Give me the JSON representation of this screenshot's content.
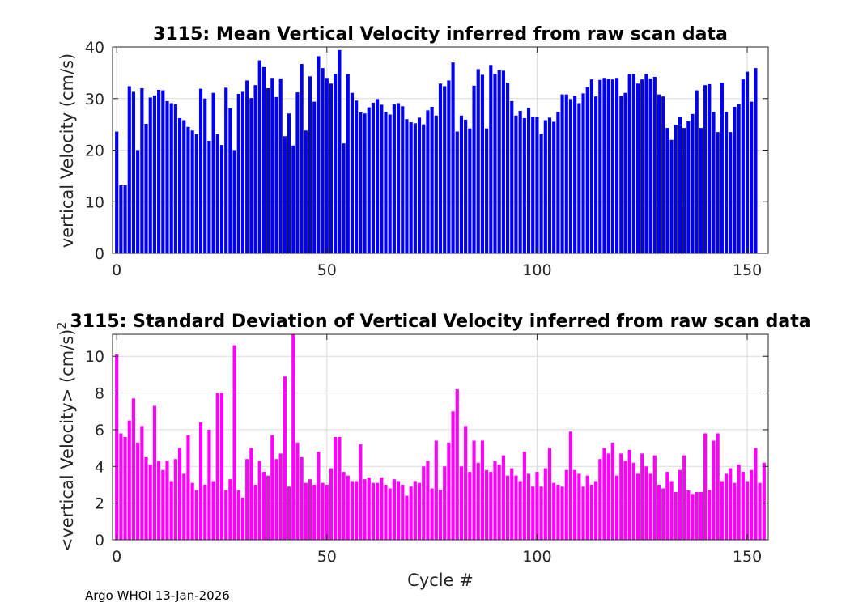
{
  "footer": "Argo WHOI 13-Jan-2026",
  "colors": {
    "top_bars": "#0000ee",
    "bottom_bars": "#ff00ff",
    "grid": "#dcdcdc",
    "axis": "#262626"
  },
  "chart_data": [
    {
      "type": "bar",
      "title": "3115: Mean Vertical Velocity inferred from raw scan data",
      "xlabel": "",
      "ylabel": "vertical Velocity (cm/s)",
      "xlim": [
        -1,
        155
      ],
      "ylim": [
        0,
        40
      ],
      "xticks": [
        0,
        50,
        100,
        150
      ],
      "yticks": [
        0,
        10,
        20,
        30,
        40
      ],
      "grid": true,
      "x_start": 0,
      "values": [
        23.6,
        13.2,
        13.2,
        32.4,
        31.3,
        20.0,
        32.0,
        25.1,
        30.2,
        30.6,
        31.7,
        31.6,
        29.5,
        29.1,
        28.9,
        26.2,
        25.8,
        24.5,
        23.8,
        23.1,
        31.9,
        30.0,
        21.8,
        31.1,
        23.1,
        21.0,
        32.1,
        28.1,
        20.0,
        30.9,
        31.3,
        33.5,
        30.1,
        32.6,
        37.4,
        36.1,
        32.0,
        34.0,
        30.3,
        33.9,
        22.7,
        27.1,
        20.9,
        31.2,
        36.7,
        23.8,
        34.3,
        29.4,
        38.2,
        35.9,
        34.0,
        32.9,
        34.8,
        39.4,
        21.3,
        34.7,
        31.1,
        29.6,
        27.3,
        27.1,
        28.3,
        29.2,
        29.9,
        28.8,
        27.4,
        26.9,
        28.9,
        29.1,
        28.5,
        26.0,
        25.4,
        25.2,
        26.3,
        25.0,
        27.7,
        28.4,
        26.7,
        32.9,
        32.4,
        33.5,
        37.0,
        23.6,
        26.7,
        25.9,
        24.2,
        32.5,
        35.7,
        34.6,
        24.2,
        36.5,
        34.8,
        35.5,
        35.4,
        33.1,
        29.5,
        26.7,
        27.6,
        26.2,
        28.2,
        26.5,
        26.4,
        23.2,
        25.8,
        26.3,
        25.5,
        27.4,
        30.8,
        30.8,
        29.9,
        30.5,
        29.1,
        31.0,
        32.2,
        33.7,
        30.4,
        33.6,
        34.0,
        33.8,
        33.7,
        34.0,
        30.5,
        31.1,
        34.7,
        34.8,
        32.9,
        33.7,
        34.8,
        33.9,
        34.2,
        30.8,
        30.4,
        24.3,
        22.0,
        24.9,
        26.5,
        24.3,
        25.6,
        27.0,
        31.6,
        24.3,
        32.6,
        32.8,
        27.4,
        23.5,
        33.1,
        27.4,
        23.5,
        28.4,
        28.9,
        33.7,
        35.2,
        29.4,
        35.9
      ]
    },
    {
      "type": "bar",
      "title": "3115: Standard Deviation of Vertical Velocity inferred from raw scan data",
      "xlabel": "Cycle #",
      "ylabel": "<vertical Velocity> (cm/s)",
      "ylabel_superscript": "2",
      "xlim": [
        -1,
        155
      ],
      "ylim": [
        0,
        11.2
      ],
      "xticks": [
        0,
        50,
        100,
        150
      ],
      "yticks": [
        0,
        2,
        4,
        6,
        8,
        10
      ],
      "grid": true,
      "x_start": 0,
      "values": [
        10.1,
        5.8,
        5.6,
        6.5,
        7.7,
        5.3,
        6.2,
        4.5,
        4.1,
        7.3,
        4.3,
        3.8,
        4.3,
        3.2,
        4.4,
        5.0,
        3.6,
        5.7,
        3.1,
        2.7,
        6.4,
        3.0,
        6.0,
        3.2,
        8.0,
        8.0,
        2.7,
        3.3,
        10.6,
        2.7,
        2.3,
        4.4,
        5.0,
        3.0,
        4.3,
        3.7,
        3.5,
        5.7,
        4.4,
        4.7,
        8.9,
        2.9,
        11.5,
        5.3,
        4.5,
        3.1,
        3.3,
        3.0,
        4.8,
        3.1,
        3.0,
        3.9,
        5.6,
        5.6,
        3.7,
        3.5,
        3.2,
        3.2,
        5.2,
        3.3,
        3.4,
        3.1,
        3.1,
        3.4,
        3.0,
        2.8,
        3.3,
        3.2,
        3.0,
        2.4,
        2.9,
        3.2,
        3.1,
        4.0,
        4.3,
        2.8,
        5.4,
        2.7,
        4.0,
        5.3,
        7.0,
        8.2,
        4.0,
        6.2,
        3.7,
        5.4,
        4.2,
        5.4,
        3.8,
        3.7,
        4.3,
        4.1,
        4.6,
        3.5,
        3.9,
        3.5,
        3.2,
        4.8,
        3.6,
        2.9,
        3.7,
        2.9,
        3.9,
        5.0,
        3.1,
        3.0,
        2.9,
        3.8,
        5.9,
        3.8,
        3.6,
        2.9,
        3.5,
        3.0,
        3.2,
        4.4,
        5.0,
        4.7,
        5.3,
        3.5,
        4.7,
        4.3,
        4.9,
        4.2,
        3.6,
        4.7,
        4.0,
        3.6,
        4.6,
        3.0,
        2.8,
        3.7,
        3.2,
        2.6,
        3.8,
        4.6,
        2.7,
        2.5,
        2.6,
        2.6,
        5.8,
        2.7,
        5.4,
        5.8,
        3.2,
        3.6,
        3.9,
        3.1,
        4.1,
        3.7,
        3.2,
        3.8,
        5.0,
        3.1,
        4.2
      ]
    }
  ]
}
